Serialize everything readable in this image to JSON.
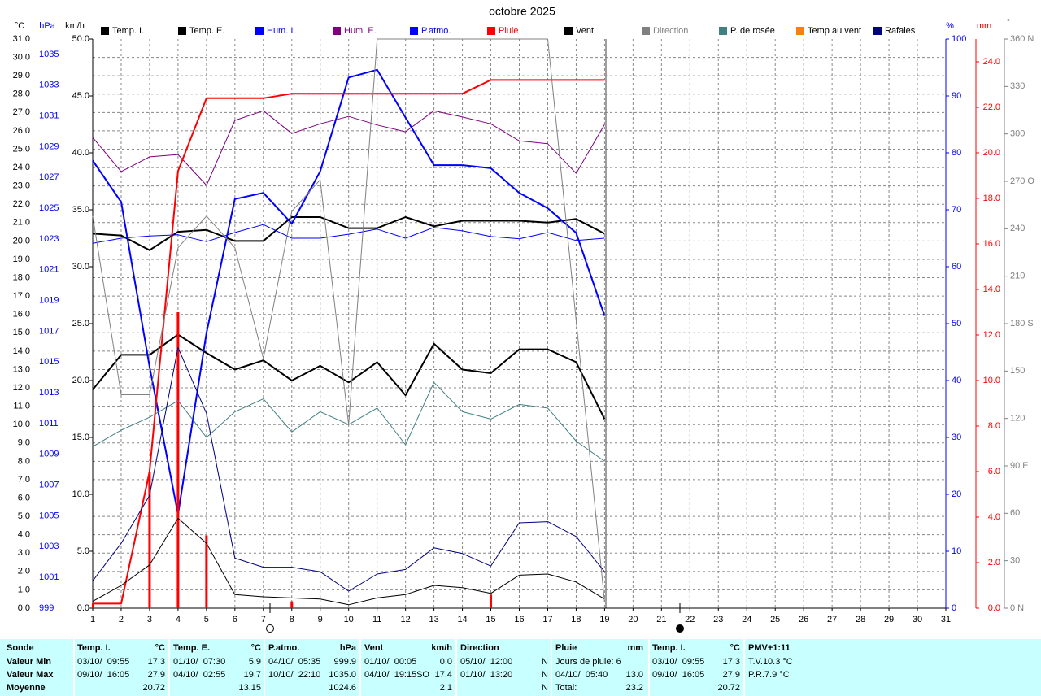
{
  "chart_data": {
    "type": "line",
    "title": "octobre 2025",
    "x": [
      1,
      2,
      3,
      4,
      5,
      6,
      7,
      8,
      9,
      10,
      11,
      12,
      13,
      14,
      15,
      16,
      17,
      18,
      19
    ],
    "xlim": [
      1,
      31
    ],
    "xticks": [
      1,
      2,
      3,
      4,
      5,
      6,
      7,
      8,
      9,
      10,
      11,
      12,
      13,
      14,
      15,
      16,
      17,
      18,
      19,
      20,
      21,
      22,
      23,
      24,
      25,
      26,
      27,
      28,
      29,
      30,
      31
    ],
    "grid": true,
    "axes": [
      {
        "label": "°C",
        "color": "#000000",
        "lim": [
          0,
          31
        ],
        "ticks": [
          {
            "value": 0,
            "label": "0.0"
          },
          {
            "value": 1,
            "label": "1.0"
          },
          {
            "value": 2,
            "label": "2.0"
          },
          {
            "value": 3,
            "label": "3.0"
          },
          {
            "value": 4,
            "label": "4.0"
          },
          {
            "value": 5,
            "label": "5.0"
          },
          {
            "value": 6,
            "label": "6.0"
          },
          {
            "value": 7,
            "label": "7.0"
          },
          {
            "value": 8,
            "label": "8.0"
          },
          {
            "value": 9,
            "label": "9.0"
          },
          {
            "value": 10,
            "label": "10.0"
          },
          {
            "value": 11,
            "label": "11.0"
          },
          {
            "value": 12,
            "label": "12.0"
          },
          {
            "value": 13,
            "label": "13.0"
          },
          {
            "value": 14,
            "label": "14.0"
          },
          {
            "value": 15,
            "label": "15.0"
          },
          {
            "value": 16,
            "label": "16.0"
          },
          {
            "value": 17,
            "label": "17.0"
          },
          {
            "value": 18,
            "label": "18.0"
          },
          {
            "value": 19,
            "label": "19.0"
          },
          {
            "value": 20,
            "label": "20.0"
          },
          {
            "value": 21,
            "label": "21.0"
          },
          {
            "value": 22,
            "label": "22.0"
          },
          {
            "value": 23,
            "label": "23.0"
          },
          {
            "value": 24,
            "label": "24.0"
          },
          {
            "value": 25,
            "label": "25.0"
          },
          {
            "value": 26,
            "label": "26.0"
          },
          {
            "value": 27,
            "label": "27.0"
          },
          {
            "value": 28,
            "label": "28.0"
          },
          {
            "value": 29,
            "label": "29.0"
          },
          {
            "value": 30,
            "label": "30.0"
          },
          {
            "value": 31,
            "label": "31.0"
          }
        ]
      },
      {
        "label": "hPa",
        "color": "#0000ff",
        "lim": [
          999,
          1036
        ],
        "ticks": [
          999,
          1001,
          1003,
          1005,
          1007,
          1009,
          1011,
          1013,
          1015,
          1017,
          1019,
          1021,
          1023,
          1025,
          1027,
          1029,
          1031,
          1033,
          1035
        ]
      },
      {
        "label": "km/h",
        "color": "#000000",
        "lim": [
          0,
          50
        ],
        "ticks": [
          {
            "value": 0,
            "label": "0.0"
          },
          {
            "value": 5,
            "label": "5.0"
          },
          {
            "value": 10,
            "label": "10.0"
          },
          {
            "value": 15,
            "label": "15.0"
          },
          {
            "value": 20,
            "label": "20.0"
          },
          {
            "value": 25,
            "label": "25.0"
          },
          {
            "value": 30,
            "label": "30.0"
          },
          {
            "value": 35,
            "label": "35.0"
          },
          {
            "value": 40,
            "label": "40.0"
          },
          {
            "value": 45,
            "label": "45.0"
          },
          {
            "value": 50,
            "label": "50.0"
          }
        ]
      },
      {
        "label": "%",
        "color": "#0000ff",
        "lim": [
          0,
          100
        ],
        "ticks": [
          0,
          10,
          20,
          30,
          40,
          50,
          60,
          70,
          80,
          90,
          100
        ]
      },
      {
        "label": "mm",
        "color": "#ff0000",
        "lim": [
          0,
          25
        ],
        "ticks": [
          {
            "value": 0,
            "label": "0.0"
          },
          {
            "value": 2,
            "label": "2.0"
          },
          {
            "value": 4,
            "label": "4.0"
          },
          {
            "value": 6,
            "label": "6.0"
          },
          {
            "value": 8,
            "label": "8.0"
          },
          {
            "value": 10,
            "label": "10.0"
          },
          {
            "value": 12,
            "label": "12.0"
          },
          {
            "value": 14,
            "label": "14.0"
          },
          {
            "value": 16,
            "label": "16.0"
          },
          {
            "value": 18,
            "label": "18.0"
          },
          {
            "value": 20,
            "label": "20.0"
          },
          {
            "value": 22,
            "label": "22.0"
          },
          {
            "value": 24,
            "label": "24.0"
          }
        ]
      },
      {
        "label": "°",
        "color": "#808080",
        "lim": [
          0,
          360
        ],
        "ticks": [
          {
            "value": 0,
            "label": "0 N"
          },
          30,
          60,
          {
            "value": 90,
            "label": "90 E"
          },
          120,
          150,
          {
            "value": 180,
            "label": "180 S"
          },
          210,
          240,
          {
            "value": 270,
            "label": "270 O"
          },
          300,
          330,
          {
            "value": 360,
            "label": "360 N"
          }
        ]
      }
    ],
    "series": [
      {
        "name": "Temp. I.",
        "color": "#000000",
        "axis": 0,
        "line_width": 2,
        "values": [
          20.4,
          20.3,
          19.5,
          20.5,
          20.6,
          20.0,
          20.0,
          21.3,
          21.3,
          20.7,
          20.7,
          21.3,
          20.8,
          21.1,
          21.1,
          21.1,
          21.0,
          21.2,
          20.4
        ]
      },
      {
        "name": "Temp. E.",
        "color": "#000000",
        "axis": 0,
        "line_width": 2,
        "values": [
          11.9,
          13.8,
          13.8,
          14.9,
          13.9,
          13.0,
          13.5,
          12.4,
          13.2,
          12.3,
          13.4,
          11.6,
          14.4,
          13.0,
          12.8,
          14.1,
          14.1,
          13.4,
          10.3
        ]
      },
      {
        "name": "Hum. I.",
        "color": "#0000ff",
        "axis": 3,
        "line_width": 1,
        "values": [
          64.1,
          65.0,
          65.4,
          65.6,
          64.4,
          66.0,
          67.4,
          65.0,
          65.0,
          65.7,
          66.6,
          65.0,
          66.9,
          66.3,
          65.3,
          64.9,
          66.0,
          64.6,
          65.0
        ]
      },
      {
        "name": "Hum. E.",
        "color": "#800080",
        "axis": 3,
        "line_width": 1,
        "values": [
          82.7,
          76.7,
          79.3,
          79.7,
          74.3,
          85.7,
          87.4,
          83.4,
          85.1,
          86.4,
          84.9,
          83.7,
          87.4,
          86.3,
          85.1,
          82.1,
          81.6,
          76.4,
          85.0
        ]
      },
      {
        "name": "P.atmo.",
        "color": "#0000ff",
        "axis": 1,
        "line_width": 2,
        "values": [
          1028.1,
          1025.4,
          1014.7,
          1005.1,
          1016.9,
          1025.6,
          1026.0,
          1024.0,
          1027.4,
          1033.5,
          1034.0,
          1030.9,
          1027.8,
          1027.8,
          1027.6,
          1026.0,
          1025.0,
          1023.4,
          1018.0
        ]
      },
      {
        "name": "Pluie",
        "color": "#ff0000",
        "axis": 4,
        "line_width": 2,
        "values": [
          0.2,
          0.2,
          6.0,
          19.2,
          22.4,
          22.4,
          22.4,
          22.6,
          22.6,
          22.6,
          22.6,
          22.6,
          22.6,
          22.6,
          23.2,
          23.2,
          23.2,
          23.2,
          23.2
        ],
        "bars": [
          0.2,
          null,
          6.0,
          13.0,
          3.2,
          null,
          null,
          0.3,
          null,
          null,
          null,
          null,
          null,
          null,
          0.6,
          null,
          null,
          null,
          null
        ]
      },
      {
        "name": "Vent",
        "color": "#000000",
        "axis": 2,
        "line_width": 1,
        "values": [
          0.6,
          2.0,
          3.8,
          7.9,
          5.7,
          1.2,
          1.0,
          0.9,
          0.8,
          0.3,
          0.9,
          1.2,
          2.0,
          1.8,
          1.3,
          2.9,
          3.0,
          2.3,
          0.8
        ]
      },
      {
        "name": "Direction",
        "color": "#808080",
        "axis": 5,
        "line_width": 1,
        "values": [
          248,
          135,
          135,
          228,
          248,
          228,
          158,
          251,
          271,
          116,
          360,
          360,
          360,
          360,
          360,
          360,
          360,
          182,
          4
        ]
      },
      {
        "name": "P. de rosée",
        "color": "#408080",
        "axis": 0,
        "line_width": 1,
        "values": [
          8.8,
          9.7,
          10.4,
          11.3,
          9.3,
          10.7,
          11.4,
          9.6,
          10.7,
          10.0,
          10.9,
          8.9,
          12.3,
          10.7,
          10.3,
          11.1,
          10.9,
          9.1,
          8.0
        ]
      },
      {
        "name": "Temp au vent",
        "color": "#ff8000",
        "axis": 0,
        "line_width": 1
      },
      {
        "name": "Rafales",
        "color": "#000080",
        "axis": 2,
        "line_width": 1,
        "values": [
          2.4,
          5.7,
          9.9,
          22.9,
          17.1,
          4.4,
          3.6,
          3.6,
          3.2,
          1.5,
          3.0,
          3.4,
          5.3,
          4.8,
          3.7,
          7.5,
          7.6,
          6.3,
          3.2
        ]
      }
    ]
  },
  "summary": {
    "row_labels": [
      "Sonde",
      "Valeur Min",
      "Valeur Max",
      "Moyenne"
    ],
    "sections": [
      {
        "title": "Temp. I.",
        "unit": "°C",
        "rows": [
          [
            "03/10/  09:55",
            "17.3"
          ],
          [
            "09/10/  16:05",
            "27.9"
          ],
          [
            "20.72"
          ]
        ]
      },
      {
        "title": "Temp. E.",
        "unit": "°C",
        "rows": [
          [
            "01/10/  07:30",
            "5.9"
          ],
          [
            "04/10/  02:55",
            "19.7"
          ],
          [
            "13.15"
          ]
        ]
      },
      {
        "title": "P.atmo.",
        "unit": "hPa",
        "rows": [
          [
            "04/10/  05:35",
            "999.9"
          ],
          [
            "10/10/  22:10",
            "1035.0"
          ],
          [
            "1024.6"
          ]
        ]
      },
      {
        "title": "Vent",
        "unit": "km/h",
        "rows": [
          [
            "01/10/  00:05",
            "0.0"
          ],
          [
            "04/10/  19:15",
            "SO",
            "17.4"
          ],
          [
            "2.1"
          ]
        ]
      },
      {
        "title": "Direction",
        "rows": [
          [
            "05/10/  12:00",
            "N"
          ],
          [
            "01/10/  13:20",
            "N"
          ],
          [
            "N"
          ]
        ]
      },
      {
        "title": "Pluie",
        "unit": "mm",
        "rows": [
          [
            "Jours de pluie: 6"
          ],
          [
            "04/10/  05:40",
            "13.0"
          ],
          [
            "Total:",
            "23.2"
          ]
        ]
      },
      {
        "title": "Temp. I.",
        "unit": "°C",
        "rows": [
          [
            "03/10/  09:55",
            "17.3"
          ],
          [
            "09/10/  16:05",
            "27.9"
          ],
          [
            "20.72"
          ]
        ]
      },
      {
        "title": "PMV+1:11",
        "rows": [
          [
            "T.V.10.3 °C"
          ],
          [
            "P.R.7.9 °C"
          ]
        ]
      }
    ]
  }
}
